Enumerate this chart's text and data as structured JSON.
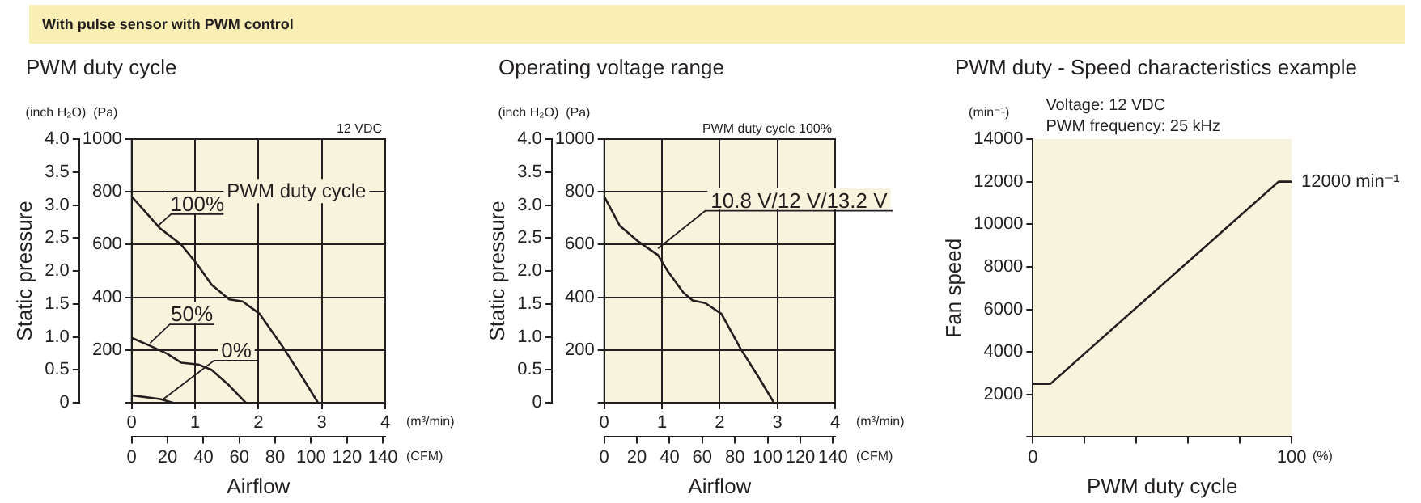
{
  "chart_data": [
    {
      "type": "line",
      "title": "PWM duty cycle",
      "subtitle": "With pulse sensor with PWM control",
      "xlabel": "Airflow",
      "ylabel": "Static pressure",
      "legend_title": "PWM duty cycle",
      "xlim": [
        0,
        4
      ],
      "xticks": [
        0,
        1,
        2,
        3,
        4
      ],
      "x2lim": [
        0,
        141.3
      ],
      "x2ticks": [
        0,
        20,
        40,
        60,
        80,
        100,
        120,
        140
      ],
      "y2lim": [
        0,
        1000
      ],
      "y2ticks": [
        {
          "value": 0,
          "label": null
        },
        200,
        400,
        600,
        800,
        1000
      ],
      "ylim": [
        0,
        4
      ],
      "yticks": [
        0,
        0.5,
        {
          "value": 1,
          "label": "1.0"
        },
        1.5,
        {
          "value": 2,
          "label": "2.0"
        },
        2.5,
        {
          "value": 3,
          "label": "3.0"
        },
        3.5,
        {
          "value": 4,
          "label": "4.0"
        }
      ],
      "grid": true,
      "marker": "none",
      "line_style": "solid",
      "annotations": [
        "12 VDC",
        "(inch H₂O)",
        "(Pa)",
        "(m³/min)",
        "(CFM)"
      ],
      "series": [
        {
          "name": "100%",
          "color": "#231f20",
          "axis": "y2",
          "x": [
            0,
            0.45,
            0.78,
            1.02,
            1.26,
            1.54,
            1.75,
            2.02,
            2.4,
            2.67,
            2.94
          ],
          "values": [
            782,
            661,
            600,
            529,
            448,
            392,
            384,
            337,
            206,
            105,
            0
          ]
        },
        {
          "name": "50%",
          "color": "#231f20",
          "axis": "y2",
          "x": [
            0,
            0.29,
            0.56,
            0.78,
            1.05,
            1.26,
            1.54,
            1.8
          ],
          "values": [
            246,
            216,
            186,
            152,
            145,
            125,
            65,
            0
          ]
        },
        {
          "name": "0%",
          "color": "#231f20",
          "axis": "y2",
          "x": [
            0,
            0.45,
            0.65
          ],
          "values": [
            28,
            14,
            0
          ]
        }
      ]
    },
    {
      "type": "line",
      "title": "Operating voltage range",
      "xlabel": "Airflow",
      "ylabel": "Static pressure",
      "xlim": [
        0,
        4
      ],
      "xticks": [
        0,
        1,
        2,
        3,
        4
      ],
      "x2lim": [
        0,
        141.3
      ],
      "x2ticks": [
        0,
        20,
        40,
        60,
        80,
        100,
        120,
        140
      ],
      "y2lim": [
        0,
        1000
      ],
      "y2ticks": [
        {
          "value": 0,
          "label": null
        },
        200,
        400,
        600,
        800,
        1000
      ],
      "ylim": [
        0,
        4
      ],
      "yticks": [
        0,
        0.5,
        {
          "value": 1,
          "label": "1.0"
        },
        1.5,
        {
          "value": 2,
          "label": "2.0"
        },
        2.5,
        {
          "value": 3,
          "label": "3.0"
        },
        3.5,
        {
          "value": 4,
          "label": "4.0"
        }
      ],
      "grid": true,
      "marker": "none",
      "line_style": "solid",
      "annotations": [
        "PWM duty cycle 100%",
        "(inch H₂O)",
        "(Pa)",
        "(m³/min)",
        "(CFM)"
      ],
      "series": [
        {
          "name": "10.8 V/12 V/13.2 V",
          "color": "#231f20",
          "axis": "y2",
          "x": [
            0,
            0.27,
            0.6,
            0.93,
            1.1,
            1.37,
            1.53,
            1.75,
            2.03,
            2.36,
            2.68,
            2.94
          ],
          "values": [
            782,
            671,
            610,
            560,
            499,
            418,
            388,
            378,
            337,
            206,
            95,
            0
          ]
        }
      ]
    },
    {
      "type": "line",
      "title": "PWM duty - Speed characteristics example",
      "xlabel": "PWM duty cycle",
      "ylabel": "Fan speed",
      "xlim": [
        0,
        100
      ],
      "xticks": [
        0,
        {
          "value": 20,
          "label": null
        },
        {
          "value": 40,
          "label": null
        },
        {
          "value": 60,
          "label": null
        },
        {
          "value": 80,
          "label": null
        },
        100
      ],
      "ylim": [
        0,
        14000
      ],
      "yticks": [
        {
          "value": 0,
          "label": null
        },
        2000,
        4000,
        6000,
        8000,
        10000,
        12000,
        14000
      ],
      "marker": "none",
      "line_style": "solid",
      "annotations": [
        "Voltage: 12 VDC",
        "PWM frequency: 25 kHz",
        "(min⁻¹)",
        "(%)",
        {
          "text": "12000 min⁻¹",
          "x": 100,
          "y": 12000
        }
      ],
      "series": [
        {
          "color": "#231f20",
          "x": [
            0,
            6.8,
            95,
            100
          ],
          "values": [
            2500,
            2500,
            12000,
            12000
          ]
        }
      ]
    }
  ]
}
